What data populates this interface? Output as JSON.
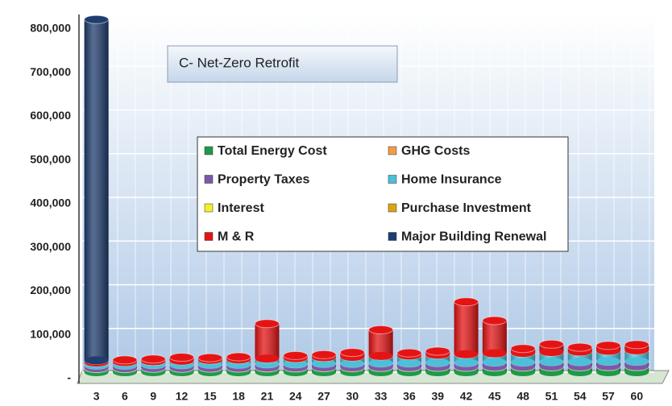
{
  "chart_data": {
    "type": "stacked_cylinder",
    "title": "C- Net-Zero Retrofit",
    "categories": [
      "3",
      "6",
      "9",
      "12",
      "15",
      "18",
      "21",
      "24",
      "27",
      "30",
      "33",
      "36",
      "39",
      "42",
      "45",
      "48",
      "51",
      "54",
      "57",
      "60"
    ],
    "series": [
      {
        "name": "Total Energy Cost",
        "color": "#1e9a4a",
        "values": [
          8000,
          8000,
          8500,
          8500,
          9000,
          9000,
          9500,
          9500,
          10000,
          10000,
          10500,
          10500,
          11000,
          11000,
          11500,
          11500,
          12000,
          12000,
          12500,
          12500
        ]
      },
      {
        "name": "GHG Costs",
        "color": "#f39a4a",
        "values": [
          1000,
          1000,
          1000,
          1000,
          1000,
          1000,
          1000,
          1000,
          1000,
          1000,
          1000,
          1000,
          1000,
          1000,
          1000,
          1000,
          1000,
          1000,
          1000,
          1000
        ]
      },
      {
        "name": "Property Taxes",
        "color": "#7a5aa8",
        "values": [
          7000,
          7000,
          7500,
          7500,
          8000,
          8000,
          8500,
          8500,
          9000,
          9000,
          9500,
          9500,
          10000,
          10000,
          10500,
          10500,
          11000,
          11000,
          11500,
          11500
        ]
      },
      {
        "name": "Home Insurance",
        "color": "#4cc0d8",
        "values": [
          6000,
          7000,
          8000,
          9000,
          10000,
          11000,
          12000,
          13000,
          14000,
          15000,
          16000,
          17000,
          18000,
          19000,
          20000,
          21000,
          22000,
          23000,
          24000,
          25000
        ]
      },
      {
        "name": "Interest",
        "color": "#f2ee2a",
        "values": [
          0,
          0,
          0,
          0,
          0,
          0,
          0,
          0,
          0,
          0,
          0,
          0,
          0,
          0,
          0,
          0,
          0,
          0,
          0,
          0
        ]
      },
      {
        "name": "Purchase Investment",
        "color": "#d9a514",
        "values": [
          0,
          0,
          0,
          0,
          0,
          0,
          0,
          0,
          0,
          0,
          0,
          0,
          0,
          0,
          0,
          0,
          0,
          0,
          0,
          0
        ]
      },
      {
        "name": "M & R",
        "color": "#e51414",
        "values": [
          5000,
          5000,
          5000,
          8000,
          5000,
          6000,
          80000,
          6000,
          6000,
          10000,
          60000,
          6000,
          8000,
          120000,
          75000,
          10000,
          18000,
          10000,
          12000,
          13000
        ]
      },
      {
        "name": "Major Building Renewal",
        "color": "#1f3d6e",
        "values": [
          780000,
          0,
          0,
          0,
          0,
          0,
          0,
          0,
          0,
          0,
          0,
          0,
          0,
          0,
          0,
          0,
          0,
          0,
          0,
          0
        ]
      }
    ],
    "ylim": [
      0,
      800000
    ],
    "yticks": [
      {
        "value": 0,
        "label": "-"
      },
      {
        "value": 100000,
        "label": "100,000"
      },
      {
        "value": 200000,
        "label": "200,000"
      },
      {
        "value": 300000,
        "label": "300,000"
      },
      {
        "value": 400000,
        "label": "400,000"
      },
      {
        "value": 500000,
        "label": "500,000"
      },
      {
        "value": 600000,
        "label": "600,000"
      },
      {
        "value": 700000,
        "label": "700,000"
      },
      {
        "value": 800000,
        "label": "800,000"
      }
    ],
    "grid": true
  }
}
